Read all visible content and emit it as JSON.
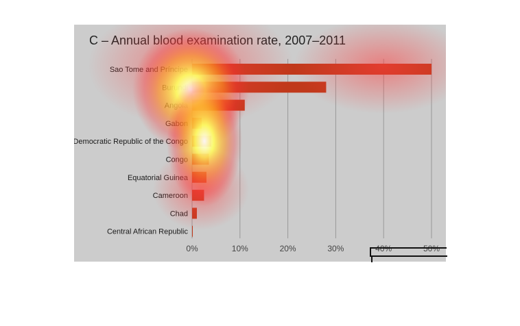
{
  "chart_data": {
    "type": "bar",
    "orientation": "horizontal",
    "title": "C – Annual blood examination rate, 2007–2011",
    "categories": [
      "Sao Tome and Príncipe",
      "Burundi",
      "Angola",
      "Gabon",
      "Democratic Republic of the Congo",
      "Congo",
      "Equatorial Guinea",
      "Cameroon",
      "Chad",
      "Central African Republic"
    ],
    "values": [
      50,
      28,
      11,
      2,
      4,
      3.5,
      3,
      2.5,
      1,
      0.1
    ],
    "xlim": [
      0,
      50
    ],
    "xticks": [
      "0%",
      "10%",
      "20%",
      "30%",
      "40%",
      "50%"
    ],
    "grid": true,
    "colors": {
      "bar": "#c0391b",
      "background": "#cccccc",
      "gridline": "#999999"
    }
  }
}
